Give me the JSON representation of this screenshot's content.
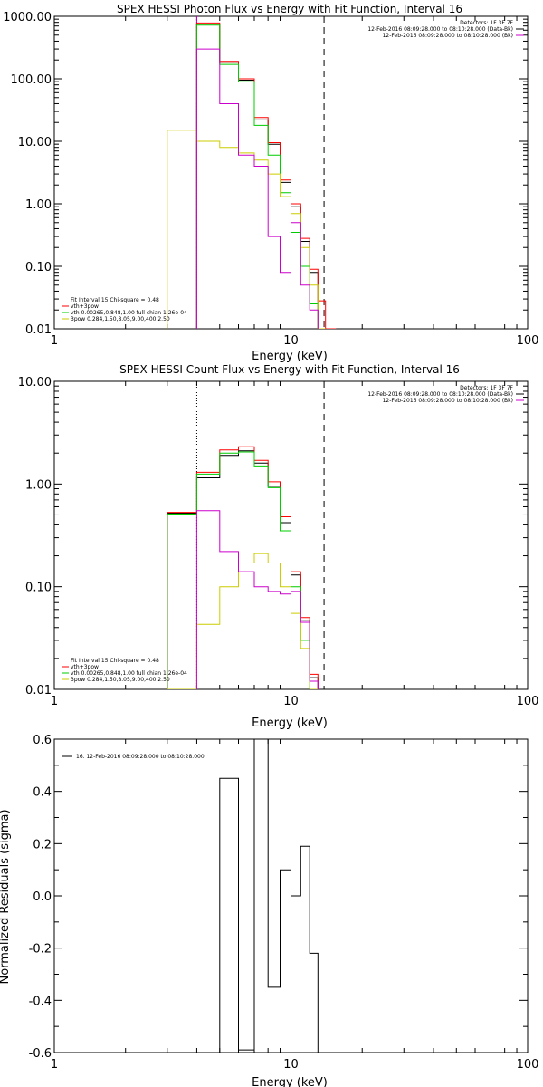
{
  "chart_data": [
    {
      "id": "photon",
      "type": "line",
      "title": "SPEX HESSI Photon Flux vs Energy with Fit Function, Interval 16",
      "xlabel": "Energy (keV)",
      "ylabel": "",
      "xscale": "log",
      "yscale": "log",
      "xlim": [
        1,
        100
      ],
      "ylim": [
        0.01,
        1000
      ],
      "xticks": [
        1,
        10,
        100
      ],
      "xtick_labels": [
        "1",
        "10",
        "100"
      ],
      "yticks": [
        0.01,
        0.1,
        1,
        10,
        100,
        1000
      ],
      "ytick_labels": [
        "0.01",
        "0.10",
        "1.00",
        "10.00",
        "100.00",
        "1000.00"
      ],
      "vlines": [
        {
          "x": 4.0,
          "style": "dotted",
          "color": "#000000"
        },
        {
          "x": 4.0,
          "style": "solid",
          "color": "#cc00cc"
        },
        {
          "x": 13.8,
          "style": "dashed",
          "color": "#000000"
        }
      ],
      "legend_right": {
        "placement": "top-right",
        "lines": [
          {
            "text": "Detectors: 1F 3F 7F",
            "color": "#000000"
          },
          {
            "text": "12-Feb-2016 08:09:28.000 to 08:10:28.000 (Data-Bk)",
            "color": "#000000"
          },
          {
            "text": "12-Feb-2016 08:09:28.000 to 08:10:28.000 (Bk)",
            "color": "#cc00cc"
          }
        ]
      },
      "legend_left": {
        "placement": "bottom-left",
        "lines": [
          {
            "text": "Fit Interval 15   Chi-square = 0.48",
            "color": "#000000"
          },
          {
            "text": "vth+3pow",
            "color": "#ff0000"
          },
          {
            "text": "vth 0.00265,0.848,1.00  full chian 1.26e-04",
            "color": "#00cc00"
          },
          {
            "text": "3pow 0.284,1.50,8.05,9.00,400,2.50",
            "color": "#cccc00"
          }
        ]
      },
      "edges": [
        3.0,
        4.0,
        5.0,
        6.0,
        7.0,
        8.0,
        9.0,
        10.0,
        11.0,
        12.0,
        13.0,
        14.0,
        15.5
      ],
      "series": [
        {
          "color": "#000000",
          "values": [
            null,
            750,
            180,
            95,
            22,
            9.0,
            2.2,
            0.9,
            0.25,
            0.08,
            null,
            null
          ]
        },
        {
          "color": "#ff0000",
          "values": [
            null,
            780,
            190,
            100,
            24,
            9.5,
            2.4,
            1.0,
            0.28,
            0.09,
            0.028,
            0.01
          ]
        },
        {
          "color": "#00cc00",
          "values": [
            null,
            720,
            170,
            90,
            18,
            6.0,
            1.5,
            0.35,
            0.1,
            0.025,
            0.01,
            null
          ]
        },
        {
          "color": "#cccc00",
          "values": [
            15,
            10,
            8.0,
            6.5,
            5.0,
            3.0,
            1.3,
            0.7,
            0.2,
            0.05,
            0.01,
            null
          ]
        },
        {
          "color": "#cc00cc",
          "values": [
            null,
            300,
            40,
            6.0,
            4.0,
            0.3,
            0.08,
            0.5,
            0.05,
            0.02,
            null,
            null
          ]
        }
      ]
    },
    {
      "id": "count",
      "type": "line",
      "title": "SPEX HESSI Count Flux vs Energy with Fit Function, Interval 16",
      "xlabel": "Energy (keV)",
      "ylabel": "",
      "xscale": "log",
      "yscale": "log",
      "xlim": [
        1,
        100
      ],
      "ylim": [
        0.01,
        10
      ],
      "xticks": [
        1,
        10,
        100
      ],
      "xtick_labels": [
        "1",
        "10",
        "100"
      ],
      "yticks": [
        0.01,
        0.1,
        1,
        10
      ],
      "ytick_labels": [
        "0.01",
        "0.10",
        "1.00",
        "10.00"
      ],
      "vlines": [
        {
          "x": 4.0,
          "style": "dotted",
          "color": "#000000"
        },
        {
          "x": 13.8,
          "style": "dashed",
          "color": "#000000"
        }
      ],
      "legend_right": {
        "placement": "top-right",
        "lines": [
          {
            "text": "Detectors: 1F 3F 7F",
            "color": "#000000"
          },
          {
            "text": "12-Feb-2016 08:09:28.000 to 08:10:28.000 (Data-Bk)",
            "color": "#000000"
          },
          {
            "text": "12-Feb-2016 08:09:28.000 to 08:10:28.000 (Bk)",
            "color": "#cc00cc"
          }
        ]
      },
      "legend_left": {
        "placement": "bottom-left",
        "lines": [
          {
            "text": "Fit Interval 15   Chi-square = 0.48",
            "color": "#000000"
          },
          {
            "text": "vth+3pow",
            "color": "#ff0000"
          },
          {
            "text": "vth 0.00265,0.848,1.00  full chian 1.26e-04",
            "color": "#00cc00"
          },
          {
            "text": "3pow 0.284,1.50,8.05,9.00,400,2.50",
            "color": "#cccc00"
          }
        ]
      },
      "edges": [
        3.0,
        4.0,
        5.0,
        6.0,
        7.0,
        8.0,
        9.0,
        10.0,
        11.0,
        12.0,
        13.0,
        14.0
      ],
      "series": [
        {
          "color": "#000000",
          "values": [
            0.52,
            1.15,
            1.9,
            2.1,
            1.6,
            0.95,
            0.42,
            0.13,
            0.047,
            0.013,
            null
          ]
        },
        {
          "color": "#ff0000",
          "values": [
            0.53,
            1.3,
            2.15,
            2.3,
            1.7,
            1.05,
            0.48,
            0.14,
            0.05,
            0.014,
            null
          ]
        },
        {
          "color": "#00cc00",
          "values": [
            0.51,
            1.25,
            2.0,
            2.05,
            1.5,
            0.92,
            0.35,
            0.1,
            0.03,
            null,
            null
          ]
        },
        {
          "color": "#cccc00",
          "values": [
            0.01,
            0.043,
            0.1,
            0.17,
            0.21,
            0.17,
            0.1,
            0.055,
            0.025,
            0.01,
            null
          ]
        },
        {
          "color": "#cc00cc",
          "values": [
            null,
            0.55,
            0.22,
            0.14,
            0.1,
            0.09,
            0.085,
            0.09,
            0.045,
            0.012,
            null
          ]
        }
      ]
    },
    {
      "id": "residuals",
      "type": "line",
      "title": "",
      "xlabel": "Energy (keV)",
      "ylabel": "Normalized Residuals (sigma)",
      "xscale": "log",
      "yscale": "linear",
      "xlim": [
        1,
        100
      ],
      "ylim": [
        -0.6,
        0.6
      ],
      "xticks": [
        1,
        10,
        100
      ],
      "xtick_labels": [
        "1",
        "10",
        "100"
      ],
      "yticks": [
        -0.6,
        -0.4,
        -0.2,
        0.0,
        0.2,
        0.4,
        0.6
      ],
      "ytick_labels": [
        "-0.6",
        "-0.4",
        "-0.2",
        "0.0",
        "0.2",
        "0.4",
        "0.6"
      ],
      "legend": {
        "placement": "top-left",
        "lines": [
          {
            "text": "16. 12-Feb-2016 08:09:28.000 to 08:10:28.000",
            "color": "#000000"
          }
        ]
      },
      "edges": [
        5.0,
        6.0,
        7.0,
        8.0,
        9.0,
        10.0,
        11.0,
        12.0,
        13.0,
        14.0
      ],
      "series": [
        {
          "color": "#000000",
          "values": [
            0.45,
            -0.59,
            0.6,
            -0.35,
            0.1,
            0.0,
            0.19,
            -0.22,
            null
          ]
        }
      ]
    }
  ]
}
